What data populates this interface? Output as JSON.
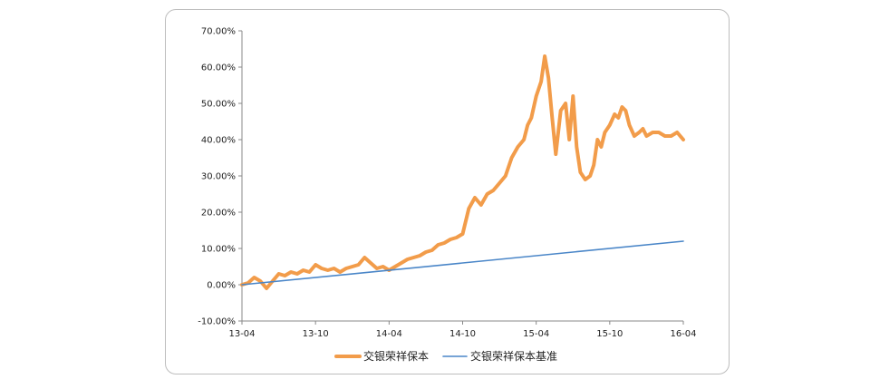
{
  "chart_data": {
    "type": "line",
    "title": "",
    "xlabel": "",
    "ylabel": "",
    "x_ticks": [
      "13-04",
      "13-10",
      "14-04",
      "14-10",
      "15-04",
      "15-10",
      "16-04"
    ],
    "y_ticks": [
      "70.00%",
      "60.00%",
      "50.00%",
      "40.00%",
      "30.00%",
      "20.00%",
      "10.00%",
      "0.00%",
      "-10.00%"
    ],
    "ylim": [
      -10,
      70
    ],
    "xlim": [
      "13-04",
      "16-04"
    ],
    "grid": false,
    "legend_position": "bottom",
    "series": [
      {
        "name": "交银荣祥保本",
        "color": "#F29C4A",
        "x_months": [
          0,
          0.5,
          1,
          1.5,
          2,
          2.5,
          3,
          3.5,
          4,
          4.5,
          5,
          5.5,
          6,
          6.5,
          7,
          7.5,
          8,
          8.5,
          9,
          9.5,
          10,
          10.5,
          11,
          11.5,
          12,
          12.5,
          13,
          13.5,
          14,
          14.5,
          15,
          15.5,
          16,
          16.5,
          17,
          17.5,
          18,
          18.5,
          19,
          19.5,
          20,
          20.5,
          21,
          21.5,
          22,
          22.5,
          23,
          23.3,
          23.6,
          24,
          24.4,
          24.7,
          25,
          25.3,
          25.6,
          26,
          26.4,
          26.7,
          27,
          27.3,
          27.6,
          28,
          28.4,
          28.7,
          29,
          29.3,
          29.6,
          30,
          30.4,
          30.7,
          31,
          31.3,
          31.6,
          32,
          32.4,
          32.7,
          33,
          33.5,
          34,
          34.5,
          35,
          35.5,
          36
        ],
        "values": [
          0,
          0.5,
          2,
          1,
          -1,
          1,
          3,
          2.5,
          3.5,
          3,
          4,
          3.5,
          5.5,
          4.5,
          4,
          4.5,
          3.5,
          4.5,
          5,
          5.5,
          7.5,
          6,
          4.5,
          5,
          4,
          5,
          6,
          7,
          7.5,
          8,
          9,
          9.5,
          11,
          11.5,
          12.5,
          13,
          14,
          21,
          24,
          22,
          25,
          26,
          28,
          30,
          35,
          38,
          40,
          44,
          46,
          52,
          56,
          63,
          57,
          46,
          36,
          48,
          50,
          40,
          52,
          38,
          31,
          29,
          30,
          33,
          40,
          38,
          42,
          44,
          47,
          46,
          49,
          48,
          44,
          41,
          42,
          43,
          41,
          42,
          42,
          41,
          41,
          42,
          40
        ]
      },
      {
        "name": "交银荣祥保本基准",
        "color": "#4A86C8",
        "x_months": [
          0,
          36
        ],
        "values": [
          0,
          12
        ]
      }
    ]
  }
}
